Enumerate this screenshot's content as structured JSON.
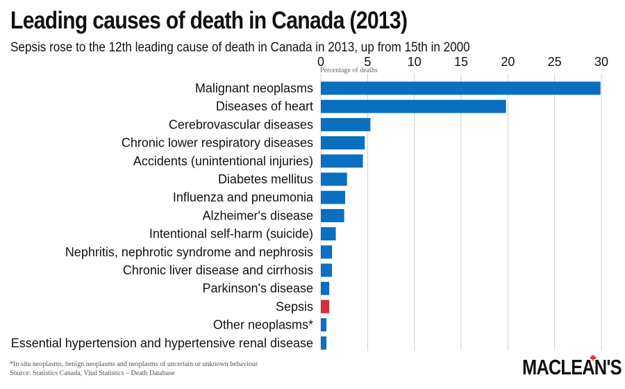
{
  "title": "Leading causes of death in Canada (2013)",
  "subtitle": "Sepsis rose to the 12th leading cause of death in Canada in 2013, up from 15th in 2000",
  "footnote": "*In situ neoplasms, benign neoplasms and neoplasms of uncertain or unknown behaviour",
  "source": "Source: Statistics Canada, Vital Statistics – Death Database",
  "logo_text": "MACLEAN'S",
  "colors": {
    "bar": "#0a6fc1",
    "highlight": "#d6303a",
    "grid": "#cfcfcf"
  },
  "chart_data": {
    "type": "bar",
    "orientation": "horizontal",
    "xlabel": "Percentage of deaths",
    "xlim": [
      0,
      30
    ],
    "xticks": [
      0,
      5,
      10,
      15,
      20,
      25,
      30
    ],
    "xaxis_position": "top",
    "grid": "vertical",
    "categories": [
      "Malignant neoplasms",
      "Diseases of heart",
      "Cerebrovascular diseases",
      "Chronic lower respiratory diseases",
      "Accidents (unintentional injuries)",
      "Diabetes mellitus",
      "Influenza and pneumonia",
      "Alzheimer's disease",
      "Intentional self-harm (suicide)",
      "Nephritis, nephrotic syndrome and nephrosis",
      "Chronic liver disease and cirrhosis",
      "Parkinson's disease",
      "Sepsis",
      "Other neoplasms*",
      "Essential hypertension and hypertensive renal disease"
    ],
    "values": [
      29.9,
      19.8,
      5.3,
      4.7,
      4.5,
      2.8,
      2.6,
      2.5,
      1.6,
      1.2,
      1.2,
      0.9,
      0.9,
      0.6,
      0.6
    ],
    "highlight": "Sepsis"
  }
}
